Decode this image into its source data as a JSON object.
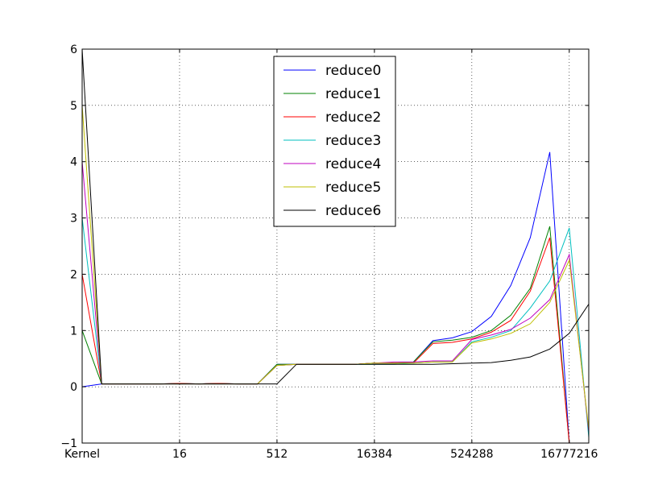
{
  "chart_data": {
    "type": "line",
    "title": "",
    "xlabel": "",
    "ylabel": "",
    "x": [
      0,
      1,
      2,
      3,
      4,
      5,
      6,
      7,
      8,
      9,
      10,
      11,
      12,
      13,
      14,
      15,
      16,
      17,
      18,
      19,
      20,
      21,
      22,
      23,
      24,
      25,
      26
    ],
    "xlim": [
      0,
      26
    ],
    "ylim": [
      -1,
      6
    ],
    "x_ticks": [
      {
        "x": 0,
        "label": "Kernel"
      },
      {
        "x": 5,
        "label": "16"
      },
      {
        "x": 10,
        "label": "512"
      },
      {
        "x": 15,
        "label": "16384"
      },
      {
        "x": 20,
        "label": "524288"
      },
      {
        "x": 25,
        "label": "16777216"
      }
    ],
    "y_ticks": [
      {
        "y": -1,
        "label": "−1"
      },
      {
        "y": 0,
        "label": "0"
      },
      {
        "y": 1,
        "label": "1"
      },
      {
        "y": 2,
        "label": "2"
      },
      {
        "y": 3,
        "label": "3"
      },
      {
        "y": 4,
        "label": "4"
      },
      {
        "y": 5,
        "label": "5"
      },
      {
        "y": 6,
        "label": "6"
      }
    ],
    "grid": true,
    "legend_position": "top-center",
    "series": [
      {
        "name": "reduce0",
        "color": "#0000ff",
        "values": [
          0,
          0.05,
          0.05,
          0.05,
          0.05,
          0.06,
          0.05,
          0.06,
          0.05,
          0.05,
          0.4,
          0.4,
          0.4,
          0.4,
          0.4,
          0.42,
          0.42,
          0.44,
          0.82,
          0.87,
          0.98,
          1.25,
          1.8,
          2.65,
          4.17,
          -1,
          -1
        ]
      },
      {
        "name": "reduce1",
        "color": "#008000",
        "values": [
          1,
          0.05,
          0.05,
          0.05,
          0.05,
          0.06,
          0.05,
          0.06,
          0.05,
          0.05,
          0.4,
          0.4,
          0.4,
          0.4,
          0.4,
          0.42,
          0.42,
          0.44,
          0.8,
          0.83,
          0.88,
          1.0,
          1.27,
          1.75,
          2.85,
          -1,
          -1
        ]
      },
      {
        "name": "reduce2",
        "color": "#ff0000",
        "values": [
          2,
          0.05,
          0.05,
          0.05,
          0.05,
          0.06,
          0.05,
          0.06,
          0.05,
          0.05,
          0.38,
          0.4,
          0.4,
          0.4,
          0.4,
          0.42,
          0.42,
          0.42,
          0.77,
          0.79,
          0.85,
          0.97,
          1.18,
          1.7,
          2.65,
          -1,
          -1
        ]
      },
      {
        "name": "reduce3",
        "color": "#00bfbf",
        "values": [
          3,
          0.05,
          0.05,
          0.05,
          0.05,
          0.05,
          0.05,
          0.05,
          0.05,
          0.05,
          0.38,
          0.4,
          0.4,
          0.4,
          0.4,
          0.4,
          0.4,
          0.42,
          0.44,
          0.44,
          0.8,
          0.88,
          1.0,
          1.4,
          1.88,
          2.82,
          -0.9
        ]
      },
      {
        "name": "reduce4",
        "color": "#bf00bf",
        "values": [
          4,
          0.05,
          0.05,
          0.05,
          0.05,
          0.05,
          0.05,
          0.05,
          0.05,
          0.05,
          0.38,
          0.4,
          0.4,
          0.4,
          0.4,
          0.42,
          0.44,
          0.44,
          0.46,
          0.46,
          0.84,
          0.92,
          1.02,
          1.22,
          1.55,
          2.35,
          -0.8
        ]
      },
      {
        "name": "reduce5",
        "color": "#bfbf00",
        "values": [
          5,
          0.05,
          0.05,
          0.05,
          0.05,
          0.05,
          0.05,
          0.05,
          0.05,
          0.05,
          0.38,
          0.4,
          0.4,
          0.4,
          0.4,
          0.42,
          0.42,
          0.42,
          0.44,
          0.44,
          0.78,
          0.85,
          0.95,
          1.12,
          1.5,
          2.25,
          -0.75
        ]
      },
      {
        "name": "reduce6",
        "color": "#000000",
        "values": [
          6,
          0.05,
          0.05,
          0.05,
          0.05,
          0.05,
          0.05,
          0.05,
          0.05,
          0.05,
          0.05,
          0.4,
          0.4,
          0.4,
          0.4,
          0.4,
          0.4,
          0.4,
          0.4,
          0.41,
          0.42,
          0.43,
          0.47,
          0.53,
          0.67,
          0.95,
          1.47
        ]
      }
    ]
  }
}
